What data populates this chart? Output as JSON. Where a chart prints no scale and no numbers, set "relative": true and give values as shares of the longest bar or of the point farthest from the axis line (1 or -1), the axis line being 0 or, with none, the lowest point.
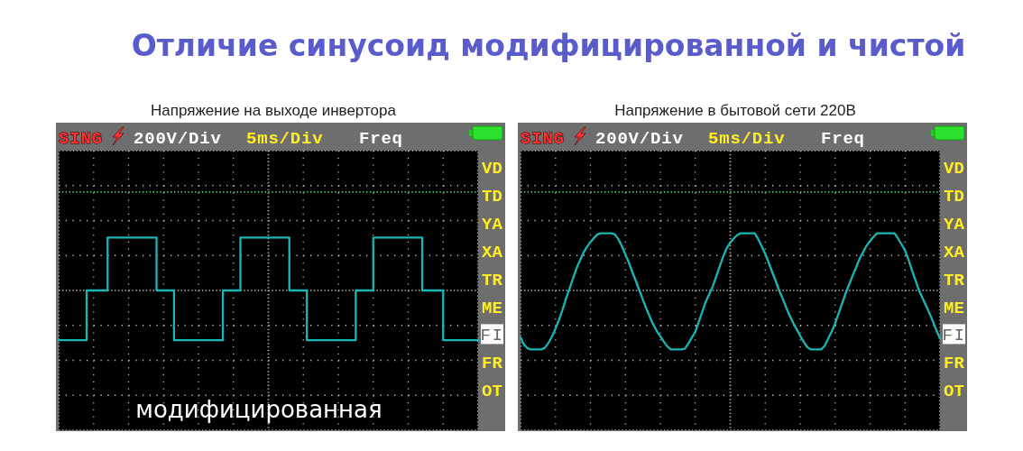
{
  "chart_data": [
    {
      "type": "step",
      "title": "Отличие синусоид модифицированной и чистой",
      "subtitle": "Напряжение на выходе инвертора",
      "xlabel": "5ms/Div",
      "ylabel": "200V/Div",
      "annotations": [
        "SING",
        "Freq",
        "VD",
        "TD",
        "YA",
        "XA",
        "TR",
        "ME",
        "FI",
        "FR",
        "OT",
        "модифицированная"
      ],
      "categories": [
        null,
        null,
        null,
        null,
        null,
        null,
        null,
        null,
        null,
        null,
        null,
        null,
        null,
        null,
        null,
        null,
        null,
        null,
        null,
        null,
        null,
        null,
        null,
        null,
        null,
        null,
        null,
        null,
        null,
        null,
        null,
        null,
        null,
        null,
        null,
        null,
        null,
        null,
        null,
        null,
        null,
        null,
        null,
        null,
        null,
        null,
        null,
        null,
        null,
        null,
        null,
        null,
        null,
        null,
        null,
        null,
        null,
        null,
        null,
        null,
        null,
        null,
        null,
        null,
        null,
        null,
        null,
        null,
        null,
        null,
        null,
        null,
        null,
        null,
        null,
        null,
        null,
        null,
        null,
        null,
        null,
        null,
        null,
        null,
        null,
        null,
        null,
        null,
        null,
        null,
        null,
        null,
        null,
        null,
        null,
        null,
        null,
        null,
        null,
        null,
        null,
        null,
        null,
        null,
        null,
        null,
        null,
        null,
        null,
        null,
        null,
        null,
        null,
        null,
        null,
        null,
        null,
        null,
        null,
        null,
        null
      ],
      "values": [
        -0.94,
        -0.94,
        -0.94,
        -0.94,
        -0.94,
        -0.94,
        -0.94,
        -0.94,
        0,
        0,
        0,
        0,
        0,
        0,
        1,
        1,
        1,
        1,
        1,
        1,
        1,
        1,
        1,
        1,
        1,
        1,
        1,
        1,
        0,
        0,
        0,
        0,
        0,
        -0.94,
        -0.94,
        -0.94,
        -0.94,
        -0.94,
        -0.94,
        -0.94,
        -0.94,
        -0.94,
        -0.94,
        -0.94,
        -0.94,
        -0.94,
        -0.94,
        0,
        0,
        0,
        0,
        0,
        1,
        1,
        1,
        1,
        1,
        1,
        1,
        1,
        1,
        1,
        1,
        1,
        1,
        1,
        0,
        0,
        0,
        0,
        0,
        -0.94,
        -0.94,
        -0.94,
        -0.94,
        -0.94,
        -0.94,
        -0.94,
        -0.94,
        -0.94,
        -0.94,
        -0.94,
        -0.94,
        -0.94,
        -0.94,
        0,
        0,
        0,
        0,
        0,
        1,
        1,
        1,
        1,
        1,
        1,
        1,
        1,
        1,
        1,
        1,
        1,
        1,
        1,
        0,
        0,
        0,
        0,
        0,
        0,
        -0.94,
        -0.94,
        -0.94,
        -0.94,
        -0.94,
        -0.94,
        -0.94,
        -0.94,
        -0.94,
        -0.94,
        -0.94
      ],
      "color": "#1bb5b3",
      "relative": true,
      "grid": true,
      "ref_lines": [
        {
          "axis": "y",
          "value": 0,
          "color": "#bbbbbb",
          "line_style": "dotted"
        },
        {
          "axis": "y",
          "value": 1.86,
          "color": "#4ccf6a",
          "line_style": "dotted"
        }
      ]
    },
    {
      "type": "line",
      "subtitle": "Напряжение в бытовой сети 220В",
      "xlabel": "5ms/Div",
      "ylabel": "200V/Div",
      "annotations": [
        "SING",
        "Freq",
        "VD",
        "TD",
        "YA",
        "XA",
        "TR",
        "ME",
        "FI",
        "FR",
        "OT"
      ],
      "categories": [
        null,
        null,
        null,
        null,
        null,
        null,
        null,
        null,
        null,
        null,
        null,
        null,
        null,
        null,
        null,
        null,
        null,
        null,
        null,
        null,
        null,
        null,
        null,
        null,
        null,
        null,
        null,
        null,
        null,
        null,
        null,
        null,
        null,
        null,
        null,
        null,
        null,
        null,
        null,
        null,
        null,
        null,
        null,
        null,
        null,
        null,
        null,
        null,
        null,
        null,
        null,
        null,
        null,
        null,
        null,
        null,
        null,
        null,
        null,
        null,
        null,
        null,
        null,
        null,
        null,
        null,
        null,
        null,
        null,
        null,
        null,
        null,
        null,
        null,
        null,
        null,
        null,
        null,
        null,
        null,
        null,
        null,
        null,
        null,
        null,
        null,
        null,
        null,
        null,
        null,
        null,
        null,
        null,
        null,
        null,
        null,
        null,
        null,
        null,
        null,
        null,
        null,
        null,
        null,
        null,
        null,
        null,
        null,
        null,
        null,
        null,
        null,
        null,
        null,
        null,
        null,
        null,
        null,
        null,
        null,
        null
      ],
      "values": [
        -0.8,
        -0.92,
        -0.98,
        -1,
        -1,
        -1,
        -1,
        -0.97,
        -0.89,
        -0.78,
        -0.65,
        -0.5,
        -0.33,
        -0.14,
        0.03,
        0.2,
        0.37,
        0.51,
        0.64,
        0.74,
        0.82,
        0.89,
        0.95,
        0.97,
        0.97,
        0.97,
        0.97,
        0.95,
        0.87,
        0.75,
        0.61,
        0.47,
        0.31,
        0.16,
        0,
        -0.16,
        -0.31,
        -0.45,
        -0.58,
        -0.69,
        -0.78,
        -0.87,
        -0.95,
        -1,
        -1,
        -1,
        -1,
        -0.99,
        -0.9,
        -0.8,
        -0.7,
        -0.53,
        -0.36,
        -0.19,
        -0.06,
        0.07,
        0.24,
        0.41,
        0.58,
        0.72,
        0.81,
        0.88,
        0.94,
        0.97,
        0.97,
        0.97,
        0.97,
        0.97,
        0.87,
        0.75,
        0.62,
        0.47,
        0.31,
        0.16,
        0,
        -0.14,
        -0.29,
        -0.43,
        -0.55,
        -0.66,
        -0.77,
        -0.87,
        -0.96,
        -1,
        -1,
        -1,
        -1,
        -0.94,
        -0.82,
        -0.7,
        -0.56,
        -0.39,
        -0.22,
        -0.05,
        0.1,
        0.25,
        0.39,
        0.54,
        0.65,
        0.76,
        0.84,
        0.91,
        0.97,
        0.97,
        0.97,
        0.97,
        0.97,
        0.97,
        0.88,
        0.78,
        0.68,
        0.52,
        0.34,
        0.17,
        0,
        -0.13,
        -0.26,
        -0.39,
        -0.53,
        -0.68,
        -0.82
      ],
      "color": "#1bb5b3",
      "relative": true,
      "grid": true,
      "ref_lines": [
        {
          "axis": "y",
          "value": 0,
          "color": "#bbbbbb",
          "line_style": "dotted"
        },
        {
          "axis": "y",
          "value": 1.67,
          "color": "#4ccf6a",
          "line_style": "dotted"
        }
      ]
    }
  ]
}
